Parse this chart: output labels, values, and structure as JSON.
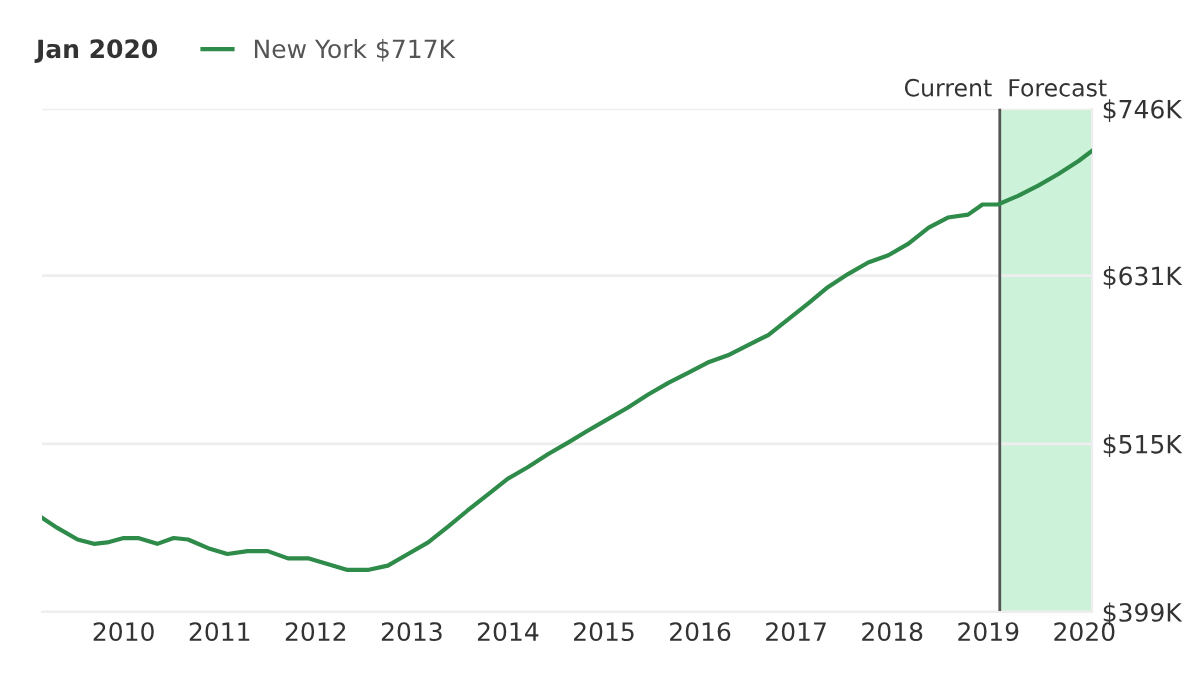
{
  "chart_data": {
    "type": "line",
    "legend_title": "Jan 2020",
    "legend": "top left",
    "grid": "y",
    "marker": "none",
    "line_style": "solid",
    "x": [
      2009.15,
      2009.31,
      2009.52,
      2009.69,
      2009.83,
      2010.0,
      2010.15,
      2010.35,
      2010.52,
      2010.67,
      2010.88,
      2011.08,
      2011.29,
      2011.5,
      2011.71,
      2011.92,
      2012.13,
      2012.33,
      2012.54,
      2012.75,
      2012.96,
      2013.17,
      2013.38,
      2013.58,
      2013.79,
      2014.0,
      2014.21,
      2014.42,
      2014.63,
      2014.83,
      2015.04,
      2015.25,
      2015.46,
      2015.67,
      2015.88,
      2016.08,
      2016.29,
      2016.5,
      2016.71,
      2016.92,
      2017.13,
      2017.33,
      2017.54,
      2017.75,
      2017.96,
      2018.17,
      2018.38,
      2018.58,
      2018.79,
      2018.94,
      2019.1,
      2019.31,
      2019.52,
      2019.73,
      2019.94,
      2020.08
    ],
    "series": [
      {
        "name": "New York $717K",
        "color": "#2e8b4a",
        "values": [
          464,
          457,
          449,
          446,
          447,
          450,
          450,
          446,
          450,
          449,
          443,
          439,
          441,
          441,
          436,
          436,
          432,
          428,
          428,
          431,
          439,
          447,
          458,
          469,
          480,
          491,
          499,
          508,
          516,
          524,
          532,
          540,
          549,
          557,
          564,
          571,
          576,
          583,
          590,
          601,
          612,
          623,
          632,
          640,
          645,
          653,
          664,
          671,
          673,
          680,
          680,
          686,
          693,
          701,
          710,
          717
        ]
      }
    ],
    "xlim": [
      2009.15,
      2020.08
    ],
    "xticks": [
      2010,
      2011,
      2012,
      2013,
      2014,
      2015,
      2016,
      2017,
      2018,
      2019,
      2020
    ],
    "ylim": [
      399,
      746
    ],
    "yticks": [
      {
        "value": 399,
        "label": "$399K"
      },
      {
        "value": 515,
        "label": "$515K"
      },
      {
        "value": 631,
        "label": "$631K"
      },
      {
        "value": 746,
        "label": "$746K"
      }
    ],
    "ref_lines": [
      {
        "axis": "x",
        "value": 2019.12,
        "label": "Current",
        "color": "#555555"
      }
    ],
    "bands": [
      {
        "axis": "x",
        "from": 2019.12,
        "to": 2020.08,
        "label": "Forecast",
        "color": "#ccf2d9"
      }
    ]
  }
}
